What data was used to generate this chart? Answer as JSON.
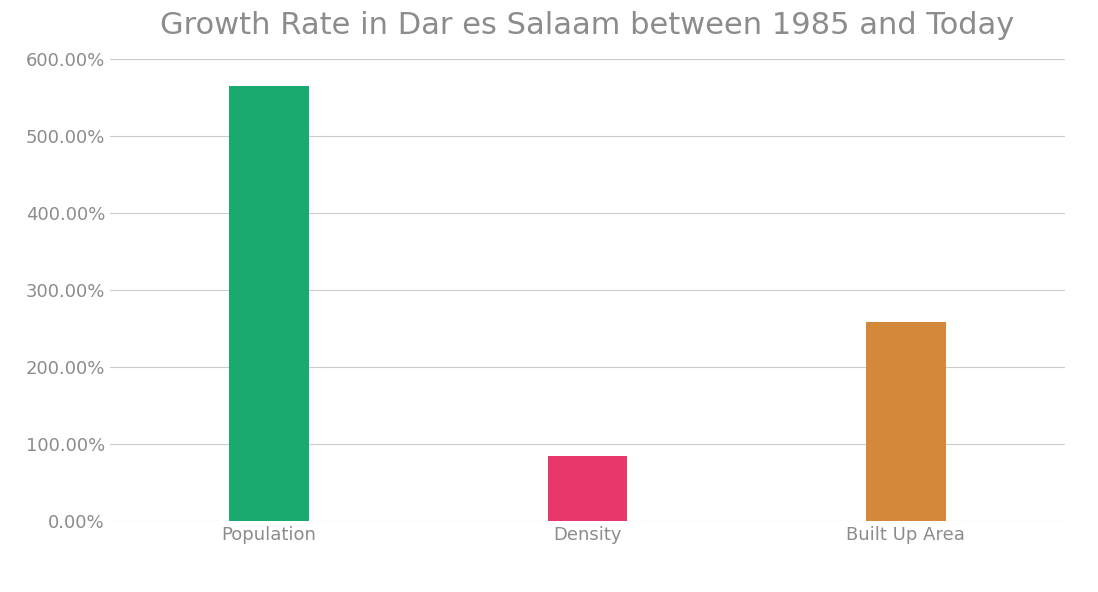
{
  "title": "Growth Rate in Dar es Salaam between 1985 and Today",
  "categories": [
    "Population",
    "Density",
    "Built Up Area"
  ],
  "values": [
    5.65,
    0.85,
    2.58
  ],
  "bar_colors": [
    "#1aaa6e",
    "#e8376a",
    "#d4893a"
  ],
  "ylim": [
    0,
    6.0
  ],
  "yticks": [
    0.0,
    1.0,
    2.0,
    3.0,
    4.0,
    5.0,
    6.0
  ],
  "ytick_labels": [
    "0.00%",
    "100.00%",
    "200.00%",
    "300.00%",
    "400.00%",
    "500.00%",
    "600.00%"
  ],
  "background_color": "#ffffff",
  "grid_color": "#cccccc",
  "title_fontsize": 22,
  "tick_fontsize": 13,
  "tick_color": "#8c8c8c",
  "bar_width": 0.25,
  "x_positions": [
    0.5,
    1.5,
    2.5
  ],
  "xlim": [
    0,
    3.0
  ]
}
